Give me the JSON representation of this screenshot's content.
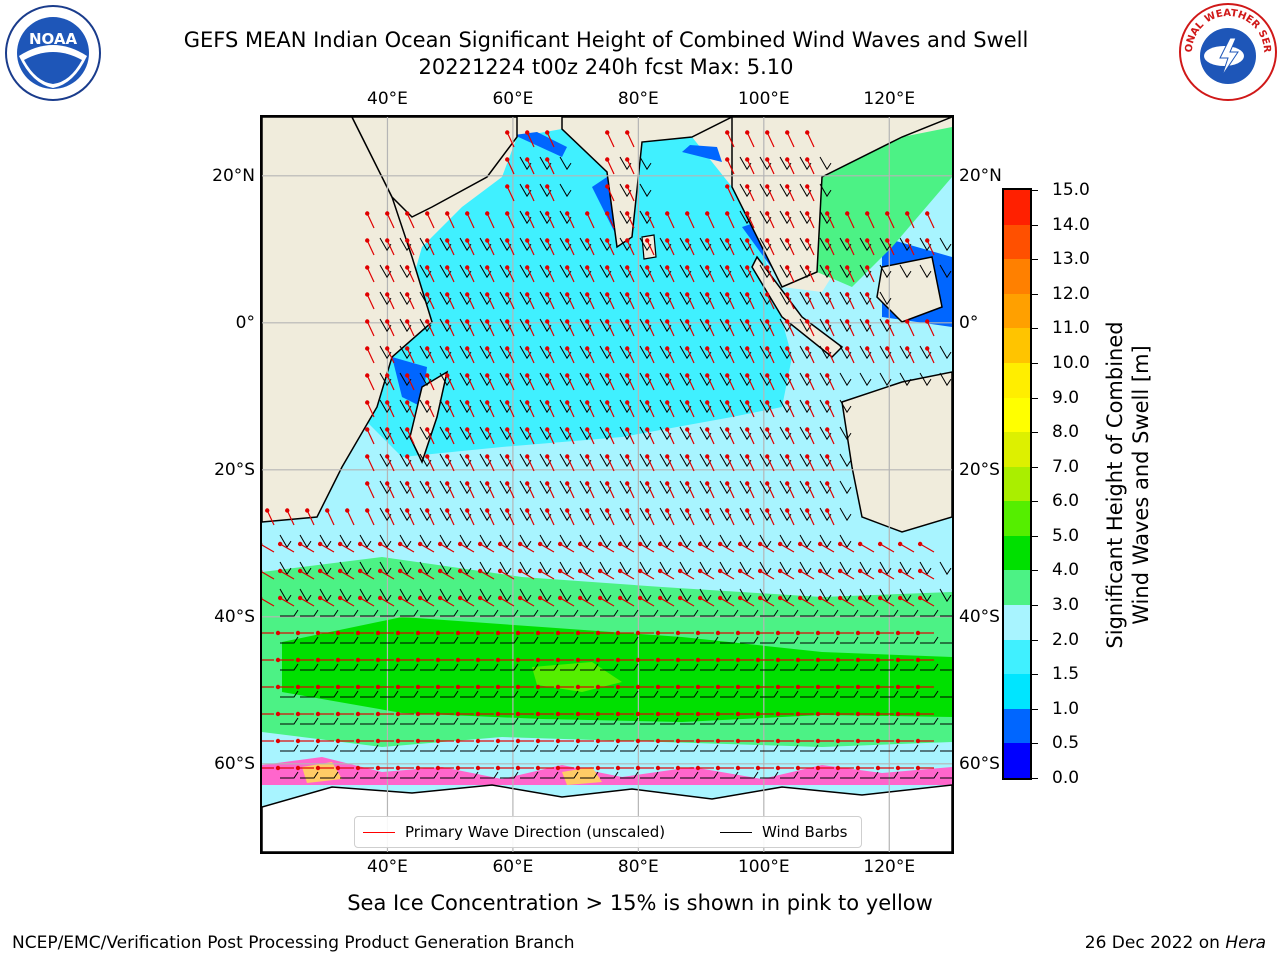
{
  "title": {
    "line1": "GEFS MEAN Indian Ocean Significant Height of Combined Wind Waves and Swell",
    "line2": "20221224 t00z 240h fcst   Max: 5.10"
  },
  "logos": {
    "left": {
      "icon": "noaa-logo",
      "text": "NOAA"
    },
    "right": {
      "icon": "nws-logo",
      "text": "NATIONAL WEATHER SERVICE"
    }
  },
  "map": {
    "extent": {
      "lon_min": 20,
      "lon_max": 130,
      "lat_min": -72,
      "lat_max": 28
    },
    "lon_ticks": [
      {
        "value": 40,
        "label": "40°E"
      },
      {
        "value": 60,
        "label": "60°E"
      },
      {
        "value": 80,
        "label": "80°E"
      },
      {
        "value": 100,
        "label": "100°E"
      },
      {
        "value": 120,
        "label": "120°E"
      }
    ],
    "lat_ticks": [
      {
        "value": 20,
        "label": "20°N"
      },
      {
        "value": 0,
        "label": "0°"
      },
      {
        "value": -20,
        "label": "20°S"
      },
      {
        "value": -40,
        "label": "40°S"
      },
      {
        "value": -60,
        "label": "60°S"
      }
    ],
    "land_color": "#f0ecdc",
    "grid": true
  },
  "colorbar": {
    "title_line1": "Significant Height of Combined",
    "title_line2": "Wind Waves and Swell [m]",
    "levels": [
      {
        "label": "0.0",
        "color": "#0000ff"
      },
      {
        "label": "0.5",
        "color": "#0066ff"
      },
      {
        "label": "1.0",
        "color": "#00e5ff"
      },
      {
        "label": "1.5",
        "color": "#40f0ff"
      },
      {
        "label": "2.0",
        "color": "#a8f4ff"
      },
      {
        "label": "3.0",
        "color": "#4cf285"
      },
      {
        "label": "4.0",
        "color": "#00e000"
      },
      {
        "label": "5.0",
        "color": "#55ee00"
      },
      {
        "label": "6.0",
        "color": "#aaee00"
      },
      {
        "label": "7.0",
        "color": "#ddf000"
      },
      {
        "label": "8.0",
        "color": "#ffff00"
      },
      {
        "label": "9.0",
        "color": "#ffee00"
      },
      {
        "label": "10.0",
        "color": "#ffc400"
      },
      {
        "label": "11.0",
        "color": "#ffa000"
      },
      {
        "label": "12.0",
        "color": "#ff8000"
      },
      {
        "label": "13.0",
        "color": "#ff5000"
      },
      {
        "label": "14.0",
        "color": "#ff2000"
      },
      {
        "label": "15.0",
        "color": null
      }
    ]
  },
  "legend": {
    "wave_label": "Primary Wave Direction (unscaled)",
    "wave_color": "#ff0000",
    "wind_label": "Wind Barbs",
    "wind_color": "#000000"
  },
  "ice_note": "Sea Ice Concentration > 15% is shown in pink to yellow",
  "footer": {
    "left": "NCEP/EMC/Verification Post Processing Product Generation Branch",
    "right_prefix": "26 Dec 2022 on ",
    "right_host": "Hera"
  }
}
